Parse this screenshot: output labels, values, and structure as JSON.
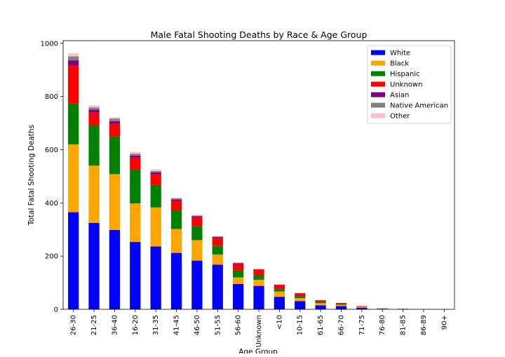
{
  "chart_data": {
    "type": "bar",
    "stacked": true,
    "title": "Male Fatal Shooting Deaths by Race & Age Group",
    "xlabel": "Age Group",
    "ylabel": "Total Fatal Shooting Deaths",
    "ylim": [
      0,
      1010
    ],
    "yticks": [
      0,
      200,
      400,
      600,
      800,
      1000
    ],
    "grid": false,
    "legend_position": "top-right",
    "categories": [
      "26-30",
      "21-25",
      "36-40",
      "16-20",
      "31-35",
      "41-45",
      "46-50",
      "51-55",
      "56-60",
      "Unknown",
      "<10",
      "10-15",
      "61-65",
      "66-70",
      "71-75",
      "76-80",
      "81-85",
      "86-89",
      "90+"
    ],
    "series": [
      {
        "name": "White",
        "color": "#0000ff",
        "values": [
          365,
          325,
          298,
          253,
          236,
          212,
          183,
          168,
          95,
          88,
          47,
          31,
          15,
          12,
          6,
          2,
          1,
          0,
          0
        ]
      },
      {
        "name": "Black",
        "color": "#ffa500",
        "values": [
          255,
          215,
          210,
          145,
          147,
          90,
          77,
          38,
          25,
          23,
          20,
          11,
          8,
          5,
          3,
          1,
          0,
          0,
          0
        ]
      },
      {
        "name": "Hispanic",
        "color": "#008000",
        "values": [
          153,
          151,
          141,
          127,
          84,
          70,
          52,
          32,
          26,
          17,
          9,
          7,
          5,
          3,
          1,
          0,
          0,
          0,
          0
        ]
      },
      {
        "name": "Unknown",
        "color": "#ff0000",
        "values": [
          143,
          48,
          48,
          45,
          40,
          35,
          33,
          30,
          24,
          22,
          16,
          11,
          6,
          4,
          2,
          1,
          1,
          0,
          0
        ]
      },
      {
        "name": "Asian",
        "color": "#800080",
        "values": [
          20,
          12,
          10,
          8,
          8,
          6,
          5,
          4,
          3,
          1,
          1,
          1,
          0,
          0,
          0,
          0,
          0,
          0,
          0
        ]
      },
      {
        "name": "Native American",
        "color": "#808080",
        "values": [
          15,
          8,
          10,
          7,
          5,
          4,
          2,
          2,
          2,
          0,
          0,
          0,
          0,
          0,
          0,
          0,
          0,
          0,
          0
        ]
      },
      {
        "name": "Other",
        "color": "#ffc0cb",
        "values": [
          12,
          8,
          5,
          7,
          6,
          3,
          3,
          2,
          2,
          0,
          0,
          0,
          0,
          0,
          0,
          0,
          0,
          0,
          0
        ]
      }
    ]
  }
}
